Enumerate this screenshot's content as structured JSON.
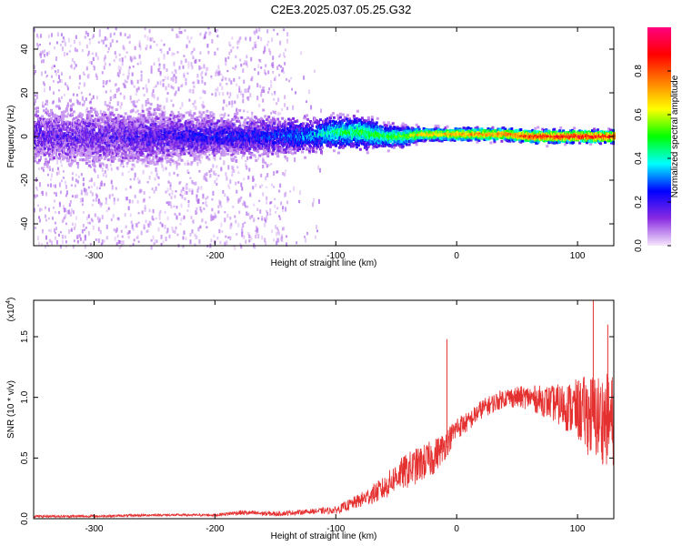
{
  "title": "C2E3.2025.037.05.25.G32",
  "chart_data": [
    {
      "type": "heatmap",
      "xlabel": "Height of straight line (km)",
      "ylabel": "Frequency (Hz)",
      "xlim": [
        -350,
        130
      ],
      "ylim": [
        -50,
        50
      ],
      "xticks": [
        -300,
        -200,
        -100,
        0,
        100
      ],
      "yticks": [
        -40,
        -20,
        0,
        20,
        40
      ],
      "xtick_labels": [
        "-300",
        "-200",
        "-100",
        "0",
        "100"
      ],
      "ytick_labels": [
        "-40",
        "-20",
        "0",
        "20",
        "40"
      ],
      "colorbar": {
        "label": "Normalized spectral amplitude",
        "range": [
          0,
          1
        ],
        "ticks": [
          0.0,
          0.2,
          0.4,
          0.6,
          0.8
        ],
        "tick_labels": [
          "0.0",
          "0.2",
          "0.4",
          "0.6",
          "0.8"
        ],
        "colormap": [
          "#f6e8fb",
          "#8a2be2",
          "#0000ff",
          "#00ffff",
          "#00ff00",
          "#ffff00",
          "#ff7f00",
          "#ff0000",
          "#ff0080"
        ]
      },
      "band_profile": {
        "x": [
          -350,
          -300,
          -250,
          -200,
          -150,
          -120,
          -100,
          -80,
          -60,
          -45,
          -30,
          0,
          40,
          60,
          100,
          130
        ],
        "center_hz": [
          0,
          0,
          0,
          0,
          0,
          0.5,
          2,
          2,
          0,
          0,
          1,
          1,
          1,
          0,
          0,
          0
        ],
        "halfwidth_hz": [
          8,
          8,
          8,
          6,
          6,
          5,
          5,
          5,
          4,
          3,
          2,
          2,
          2,
          2,
          2,
          2
        ],
        "amplitude": [
          0.15,
          0.15,
          0.18,
          0.22,
          0.25,
          0.35,
          0.45,
          0.5,
          0.5,
          0.55,
          0.7,
          0.75,
          0.8,
          0.9,
          0.95,
          0.9
        ]
      },
      "scatter_extent_hz": [
        -50,
        50
      ],
      "scatter_fade_x": -140
    },
    {
      "type": "line",
      "xlabel": "Height of straight line (km)",
      "ylabel": "SNR (10 * v/v)",
      "y_multiplier_label": "(x10",
      "y_multiplier_exp": "4",
      "y_multiplier_close": ")",
      "xlim": [
        -350,
        130
      ],
      "ylim": [
        0,
        1.8
      ],
      "xticks": [
        -300,
        -200,
        -100,
        0,
        100
      ],
      "yticks": [
        0.0,
        0.5,
        1.0,
        1.5
      ],
      "xtick_labels": [
        "-300",
        "-200",
        "-100",
        "0",
        "100"
      ],
      "ytick_labels": [
        "0.0",
        "0.5",
        "1.0",
        "1.5"
      ],
      "color": "#e53030",
      "envelope": {
        "x": [
          -350,
          -300,
          -250,
          -200,
          -180,
          -150,
          -120,
          -100,
          -80,
          -60,
          -50,
          -40,
          -30,
          -20,
          -10,
          -3,
          0,
          10,
          20,
          40,
          60,
          80,
          100,
          110,
          130
        ],
        "mean": [
          0.02,
          0.02,
          0.03,
          0.03,
          0.05,
          0.04,
          0.06,
          0.07,
          0.15,
          0.25,
          0.35,
          0.4,
          0.45,
          0.5,
          0.6,
          0.7,
          0.75,
          0.8,
          0.9,
          1.0,
          1.0,
          0.95,
          0.9,
          0.85,
          0.8
        ],
        "noise": [
          0.01,
          0.01,
          0.01,
          0.01,
          0.02,
          0.02,
          0.02,
          0.03,
          0.06,
          0.1,
          0.12,
          0.15,
          0.15,
          0.15,
          0.12,
          0.1,
          0.1,
          0.08,
          0.08,
          0.08,
          0.1,
          0.15,
          0.25,
          0.35,
          0.4
        ]
      },
      "spikes": [
        {
          "x": -8,
          "y": 1.48
        },
        {
          "x": 113,
          "y": 1.8
        },
        {
          "x": 125,
          "y": 1.6
        }
      ]
    }
  ]
}
